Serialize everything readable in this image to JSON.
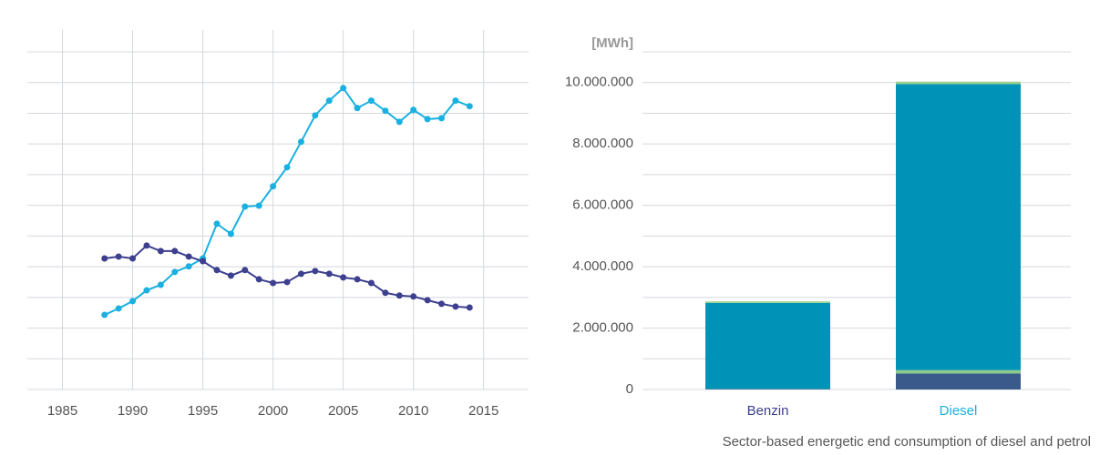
{
  "chart_data": [
    {
      "type": "line",
      "x": [
        1988,
        1989,
        1990,
        1991,
        1992,
        1993,
        1994,
        1995,
        1996,
        1997,
        1998,
        1999,
        2000,
        2001,
        2002,
        2003,
        2004,
        2005,
        2006,
        2007,
        2008,
        2009,
        2010,
        2011,
        2012,
        2013,
        2014
      ],
      "series": [
        {
          "color": "#1ab0e0",
          "values": [
            2.43,
            2.64,
            2.88,
            3.23,
            3.41,
            3.83,
            4.01,
            4.27,
            5.4,
            5.07,
            5.96,
            5.99,
            6.62,
            7.24,
            8.07,
            8.93,
            9.41,
            9.82,
            9.17,
            9.41,
            9.08,
            8.72,
            9.11,
            8.81,
            8.84,
            9.41,
            9.23
          ]
        },
        {
          "color": "#3d3f8f",
          "values": [
            4.27,
            4.33,
            4.27,
            4.69,
            4.51,
            4.51,
            4.33,
            4.18,
            3.89,
            3.71,
            3.89,
            3.59,
            3.47,
            3.5,
            3.77,
            3.86,
            3.77,
            3.65,
            3.59,
            3.47,
            3.15,
            3.06,
            3.03,
            2.91,
            2.79,
            2.7,
            2.67
          ]
        }
      ],
      "xlim": [
        1982.5,
        2018.2
      ],
      "xticks": [
        1985,
        1990,
        1995,
        2000,
        2005,
        2010,
        2015
      ],
      "ylim": [
        0,
        11
      ],
      "yticks": [
        0,
        1,
        2,
        3,
        4,
        5,
        6,
        7,
        8,
        9,
        10,
        11
      ],
      "grid": true
    },
    {
      "type": "bar",
      "y_label": "[MWh]",
      "caption": "Sector-based energetic end consumption of diesel and petrol",
      "categories": [
        "Benzin",
        "Diesel"
      ],
      "category_colors": [
        "#3d3f8f",
        "#1ab0e0"
      ],
      "series": [
        {
          "color": "#3a5a8c",
          "values": [
            20000,
            520000
          ]
        },
        {
          "color": "#8fc98b",
          "values": [
            0,
            110000
          ]
        },
        {
          "color": "#0093b8",
          "values": [
            2800000,
            9320000
          ]
        },
        {
          "color": "#9ccf8e",
          "values": [
            50000,
            80000
          ]
        }
      ],
      "ylim": [
        0,
        11000000
      ],
      "yticks": [
        {
          "value": 0,
          "label": "0"
        },
        {
          "value": 2000000,
          "label": "2.000.000"
        },
        {
          "value": 4000000,
          "label": "4.000.000"
        },
        {
          "value": 6000000,
          "label": "6.000.000"
        },
        {
          "value": 8000000,
          "label": "8.000.000"
        },
        {
          "value": 10000000,
          "label": "10.000.000"
        }
      ],
      "y_grid": [
        0,
        1000000,
        2000000,
        3000000,
        4000000,
        5000000,
        6000000,
        7000000,
        8000000,
        9000000,
        10000000,
        11000000
      ],
      "grid": true
    }
  ]
}
